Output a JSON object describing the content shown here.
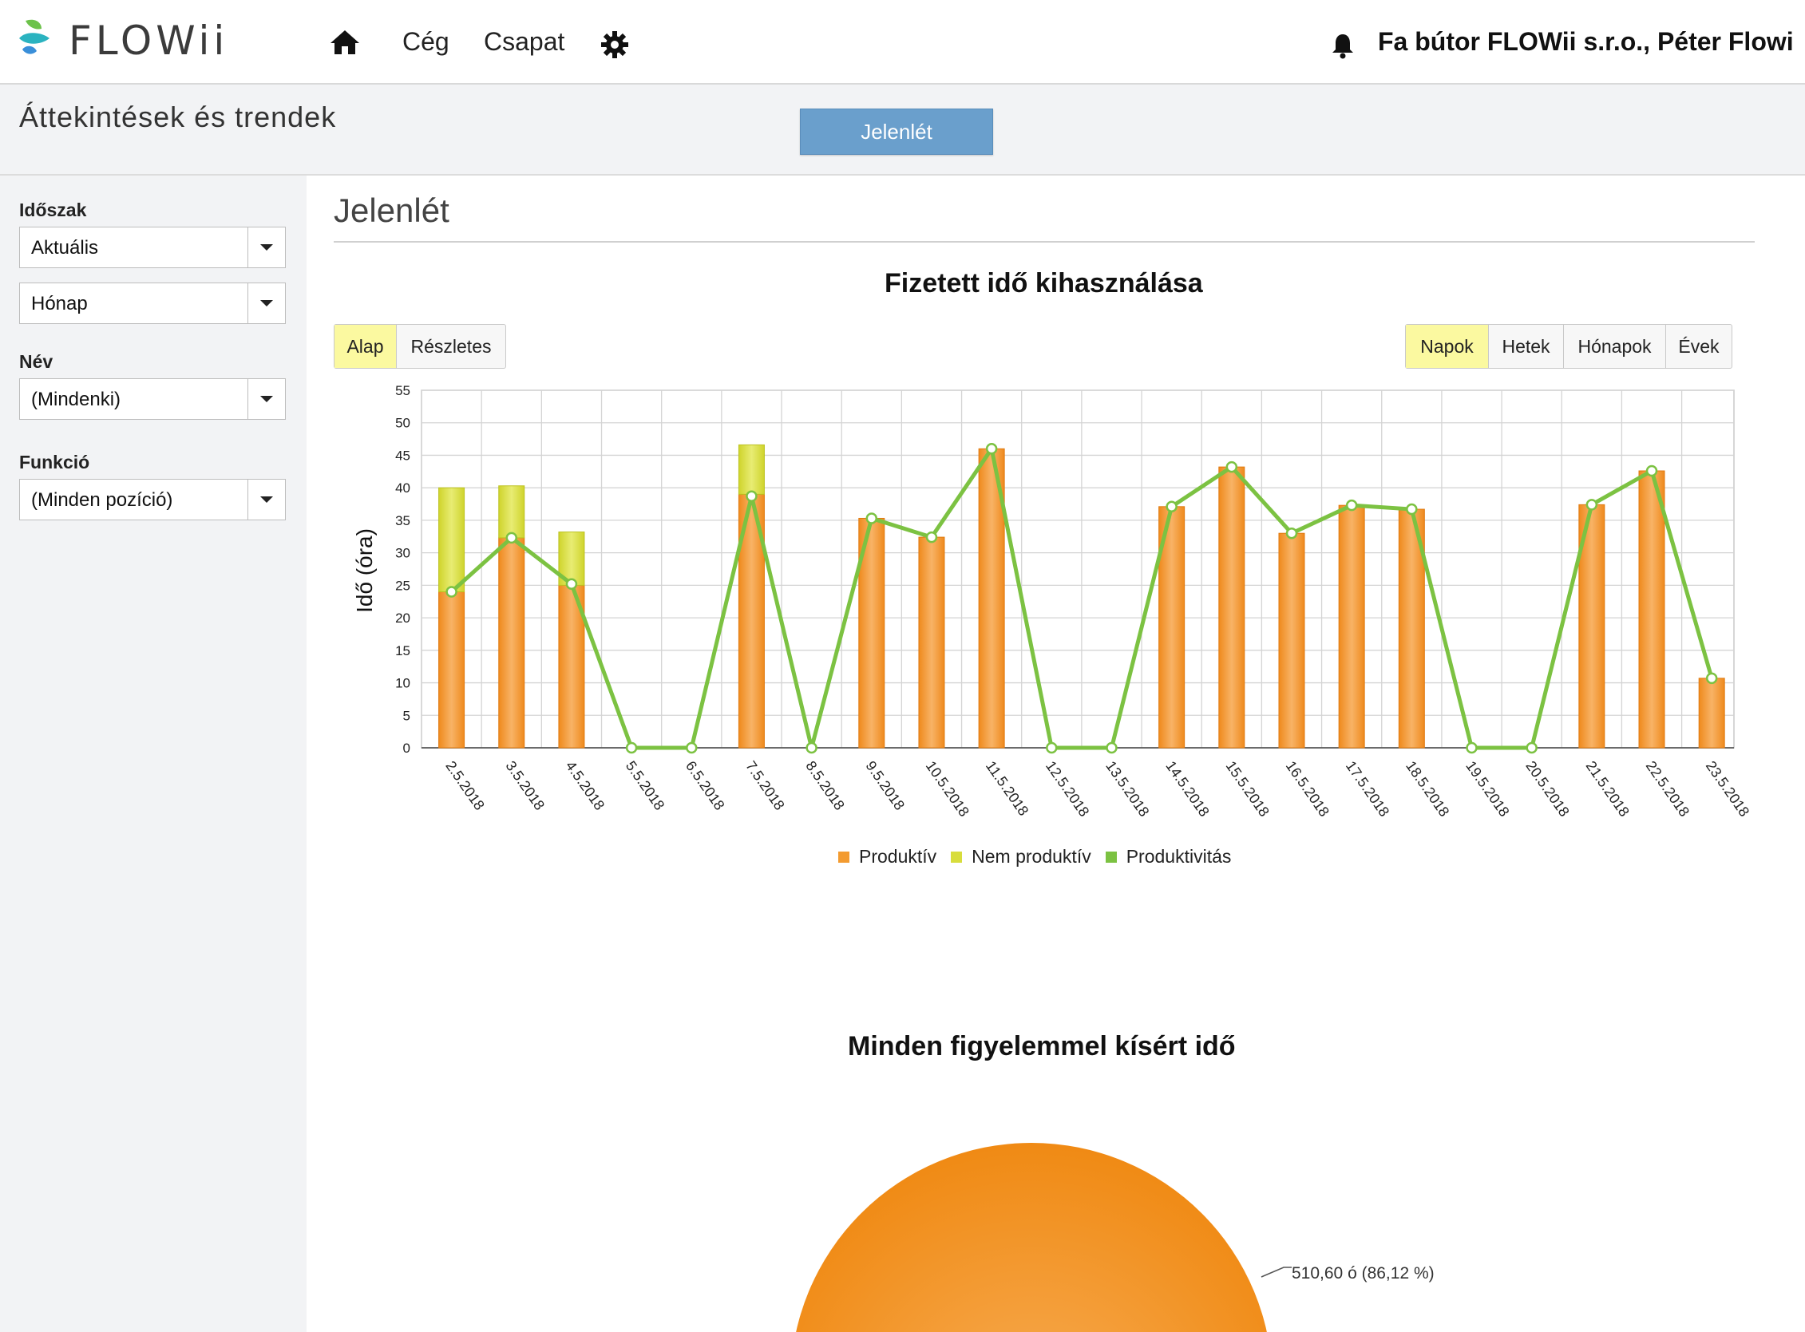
{
  "app": {
    "logo_text": "FLOWii",
    "brand_colors": {
      "blue": "#3a8fd9",
      "green": "#6cc24a",
      "teal": "#2bb3c0"
    }
  },
  "topnav": {
    "home_icon": "home-icon",
    "company": "Cég",
    "team": "Csapat",
    "settings_icon": "gear-icon",
    "notification_icon": "bell-icon",
    "user": "Fa bútor FLOWii s.r.o., Péter Flowi"
  },
  "subheader": {
    "title": "Áttekintések és trendek",
    "active_button": "Jelenlét"
  },
  "sidebar": {
    "period_label": "Időszak",
    "period_value": "Aktuális",
    "period_unit_value": "Hónap",
    "name_label": "Név",
    "name_value": "(Mindenki)",
    "function_label": "Funkció",
    "function_value": "(Minden pozíció)"
  },
  "main": {
    "title": "Jelenlét",
    "detail_toggle": [
      {
        "label": "Alap",
        "active": true
      },
      {
        "label": "Részletes",
        "active": false
      }
    ],
    "period_toggle": [
      {
        "label": "Napok",
        "active": true
      },
      {
        "label": "Hetek",
        "active": false
      },
      {
        "label": "Hónapok",
        "active": false
      },
      {
        "label": "Évek",
        "active": false
      }
    ]
  },
  "chart_data": [
    {
      "type": "bar",
      "title": "Fizetett idő kihasználása",
      "xlabel": "",
      "ylabel": "Idő (óra)",
      "ylim": [
        0,
        55
      ],
      "yticks": [
        0,
        5,
        10,
        15,
        20,
        25,
        30,
        35,
        40,
        45,
        50,
        55
      ],
      "grid": true,
      "legend_position": "bottom",
      "categories": [
        "2.5.2018",
        "3.5.2018",
        "4.5.2018",
        "5.5.2018",
        "6.5.2018",
        "7.5.2018",
        "8.5.2018",
        "9.5.2018",
        "10.5.2018",
        "11.5.2018",
        "12.5.2018",
        "13.5.2018",
        "14.5.2018",
        "15.5.2018",
        "16.5.2018",
        "17.5.2018",
        "18.5.2018",
        "19.5.2018",
        "20.5.2018",
        "21.5.2018",
        "22.5.2018",
        "23.5.2018"
      ],
      "series": [
        {
          "name": "Produktív",
          "kind": "bar",
          "color": "#f39b30",
          "values": [
            24,
            32.3,
            25,
            0,
            0,
            39,
            0,
            35.3,
            32.4,
            46,
            0,
            0,
            37.1,
            43.2,
            33,
            37.3,
            36.7,
            0,
            0,
            37.4,
            42.6,
            10.7
          ]
        },
        {
          "name": "Nem produktív",
          "kind": "bar-stacked",
          "color": "#d8dd3c",
          "values": [
            16,
            8,
            8.2,
            0,
            0,
            7.6,
            0,
            0,
            0,
            0,
            0,
            0,
            0,
            0,
            0,
            0,
            0,
            0,
            0,
            0,
            0,
            0
          ]
        },
        {
          "name": "Produktivitás",
          "kind": "line",
          "color": "#7cc242",
          "values": [
            24,
            32.3,
            25.2,
            0,
            0,
            38.7,
            0,
            35.3,
            32.4,
            46,
            0,
            0,
            37.1,
            43.2,
            33,
            37.3,
            36.7,
            0,
            0,
            37.4,
            42.6,
            10.7
          ]
        }
      ]
    },
    {
      "type": "pie",
      "title": "Minden figyelemmel kísért idő",
      "slices": [
        {
          "label": "510,60 ó (86,12 %)",
          "value": 510.6,
          "percent": 86.12,
          "color": "#f39b30"
        }
      ]
    }
  ]
}
